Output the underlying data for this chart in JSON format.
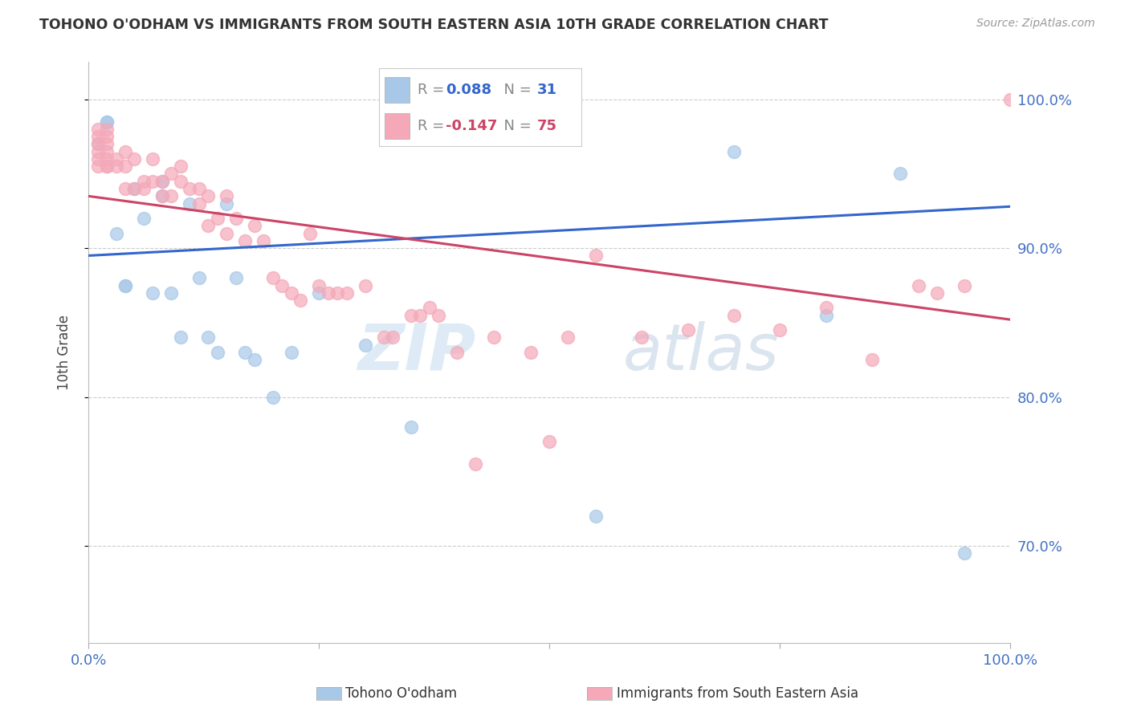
{
  "title": "TOHONO O'ODHAM VS IMMIGRANTS FROM SOUTH EASTERN ASIA 10TH GRADE CORRELATION CHART",
  "source": "Source: ZipAtlas.com",
  "ylabel": "10th Grade",
  "ytick_labels": [
    "100.0%",
    "90.0%",
    "80.0%",
    "70.0%"
  ],
  "ytick_values": [
    1.0,
    0.9,
    0.8,
    0.7
  ],
  "xlim": [
    0.0,
    1.0
  ],
  "ylim": [
    0.635,
    1.025
  ],
  "legend_blue_r": "R = 0.088",
  "legend_blue_n": "N = 31",
  "legend_pink_r": "R = -0.147",
  "legend_pink_n": "N = 75",
  "blue_color": "#a8c8e8",
  "pink_color": "#f4a8b8",
  "blue_line_color": "#3366cc",
  "pink_line_color": "#cc4466",
  "watermark_color": "#d4e8f8",
  "background_color": "#ffffff",
  "grid_color": "#cccccc",
  "tick_color": "#4472c4",
  "blue_scatter_x": [
    0.01,
    0.02,
    0.02,
    0.03,
    0.04,
    0.04,
    0.05,
    0.06,
    0.07,
    0.08,
    0.08,
    0.09,
    0.1,
    0.11,
    0.12,
    0.13,
    0.14,
    0.15,
    0.16,
    0.17,
    0.18,
    0.2,
    0.22,
    0.25,
    0.3,
    0.35,
    0.55,
    0.7,
    0.8,
    0.88,
    0.95
  ],
  "blue_scatter_y": [
    0.97,
    0.985,
    0.985,
    0.91,
    0.875,
    0.875,
    0.94,
    0.92,
    0.87,
    0.945,
    0.935,
    0.87,
    0.84,
    0.93,
    0.88,
    0.84,
    0.83,
    0.93,
    0.88,
    0.83,
    0.825,
    0.8,
    0.83,
    0.87,
    0.835,
    0.78,
    0.72,
    0.965,
    0.855,
    0.95,
    0.695
  ],
  "pink_scatter_x": [
    0.01,
    0.01,
    0.01,
    0.01,
    0.01,
    0.01,
    0.02,
    0.02,
    0.02,
    0.02,
    0.02,
    0.02,
    0.02,
    0.03,
    0.03,
    0.04,
    0.04,
    0.04,
    0.05,
    0.05,
    0.06,
    0.06,
    0.07,
    0.07,
    0.08,
    0.08,
    0.09,
    0.09,
    0.1,
    0.1,
    0.11,
    0.12,
    0.12,
    0.13,
    0.13,
    0.14,
    0.15,
    0.15,
    0.16,
    0.17,
    0.18,
    0.19,
    0.2,
    0.21,
    0.22,
    0.23,
    0.24,
    0.25,
    0.26,
    0.27,
    0.28,
    0.3,
    0.32,
    0.33,
    0.35,
    0.36,
    0.37,
    0.4,
    0.44,
    0.5,
    0.52,
    0.55,
    0.6,
    0.65,
    0.7,
    0.75,
    0.8,
    0.85,
    0.9,
    0.92,
    0.95,
    1.0,
    0.38,
    0.42,
    0.48
  ],
  "pink_scatter_y": [
    0.97,
    0.965,
    0.96,
    0.955,
    0.975,
    0.98,
    0.97,
    0.965,
    0.96,
    0.955,
    0.975,
    0.98,
    0.955,
    0.96,
    0.955,
    0.965,
    0.955,
    0.94,
    0.96,
    0.94,
    0.945,
    0.94,
    0.96,
    0.945,
    0.945,
    0.935,
    0.95,
    0.935,
    0.945,
    0.955,
    0.94,
    0.94,
    0.93,
    0.935,
    0.915,
    0.92,
    0.935,
    0.91,
    0.92,
    0.905,
    0.915,
    0.905,
    0.88,
    0.875,
    0.87,
    0.865,
    0.91,
    0.875,
    0.87,
    0.87,
    0.87,
    0.875,
    0.84,
    0.84,
    0.855,
    0.855,
    0.86,
    0.83,
    0.84,
    0.77,
    0.84,
    0.895,
    0.84,
    0.845,
    0.855,
    0.845,
    0.86,
    0.825,
    0.875,
    0.87,
    0.875,
    1.0,
    0.855,
    0.755,
    0.83
  ],
  "blue_line_x0": 0.0,
  "blue_line_y0": 0.895,
  "blue_line_x1": 1.0,
  "blue_line_y1": 0.928,
  "pink_line_x0": 0.0,
  "pink_line_y0": 0.935,
  "pink_line_x1": 1.0,
  "pink_line_y1": 0.852
}
